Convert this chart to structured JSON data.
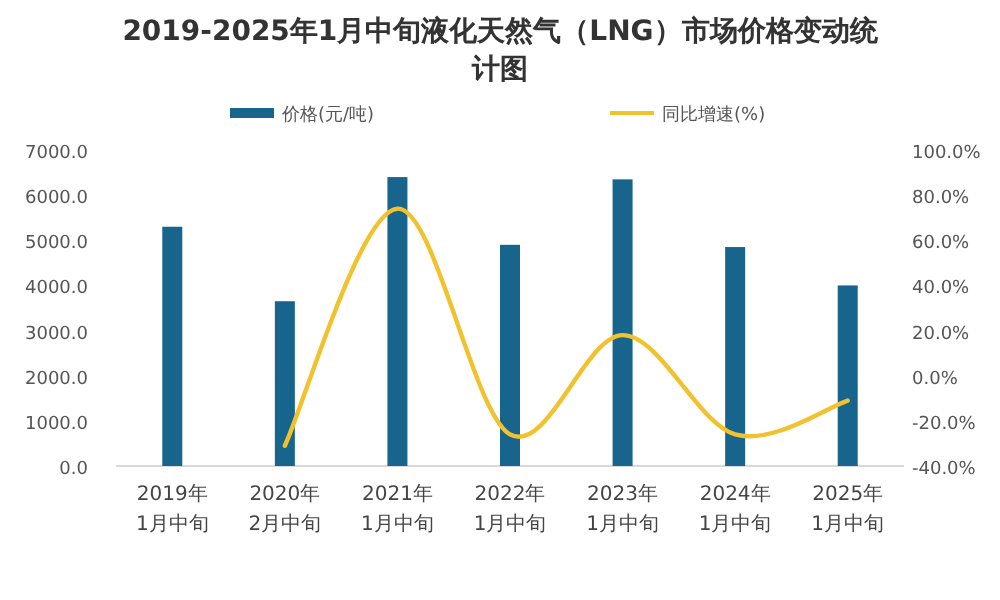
{
  "chart_data": {
    "type": "bar",
    "title": "2019-2025年1月中旬液化天然气（LNG）市场价格变动统计图",
    "categories": [
      "2019年\n1月中旬",
      "2020年\n2月中旬",
      "2021年\n1月中旬",
      "2022年\n1月中旬",
      "2023年\n1月中旬",
      "2024年\n1月中旬",
      "2025年\n1月中旬"
    ],
    "series": [
      {
        "name": "价格(元/吨)",
        "color": "#17658c",
        "values": [
          5300,
          3650,
          6400,
          4900,
          6350,
          4850,
          4000
        ]
      },
      {
        "name": "同比增速(%)",
        "type": "line",
        "axis": "y2",
        "color": "#f2c12e",
        "values": [
          null,
          -31,
          74,
          -26,
          18,
          -26,
          -11
        ]
      }
    ],
    "ylim": [
      0,
      7000
    ],
    "yticks": [
      {
        "value": 0,
        "label": "0.0"
      },
      {
        "value": 1000,
        "label": "1000.0"
      },
      {
        "value": 2000,
        "label": "2000.0"
      },
      {
        "value": 3000,
        "label": "3000.0"
      },
      {
        "value": 4000,
        "label": "4000.0"
      },
      {
        "value": 5000,
        "label": "5000.0"
      },
      {
        "value": 6000,
        "label": "6000.0"
      },
      {
        "value": 7000,
        "label": "7000.0"
      }
    ],
    "y2lim": [
      -40,
      100
    ],
    "y2ticks": [
      {
        "value": -40,
        "label": "-40.0%"
      },
      {
        "value": -20,
        "label": "-20.0%"
      },
      {
        "value": 0,
        "label": "0.0%"
      },
      {
        "value": 20,
        "label": "20.0%"
      },
      {
        "value": 40,
        "label": "40.0%"
      },
      {
        "value": 60,
        "label": "60.0%"
      },
      {
        "value": 80,
        "label": "80.0%"
      },
      {
        "value": 100,
        "label": "100.0%"
      }
    ],
    "legend": "top"
  }
}
